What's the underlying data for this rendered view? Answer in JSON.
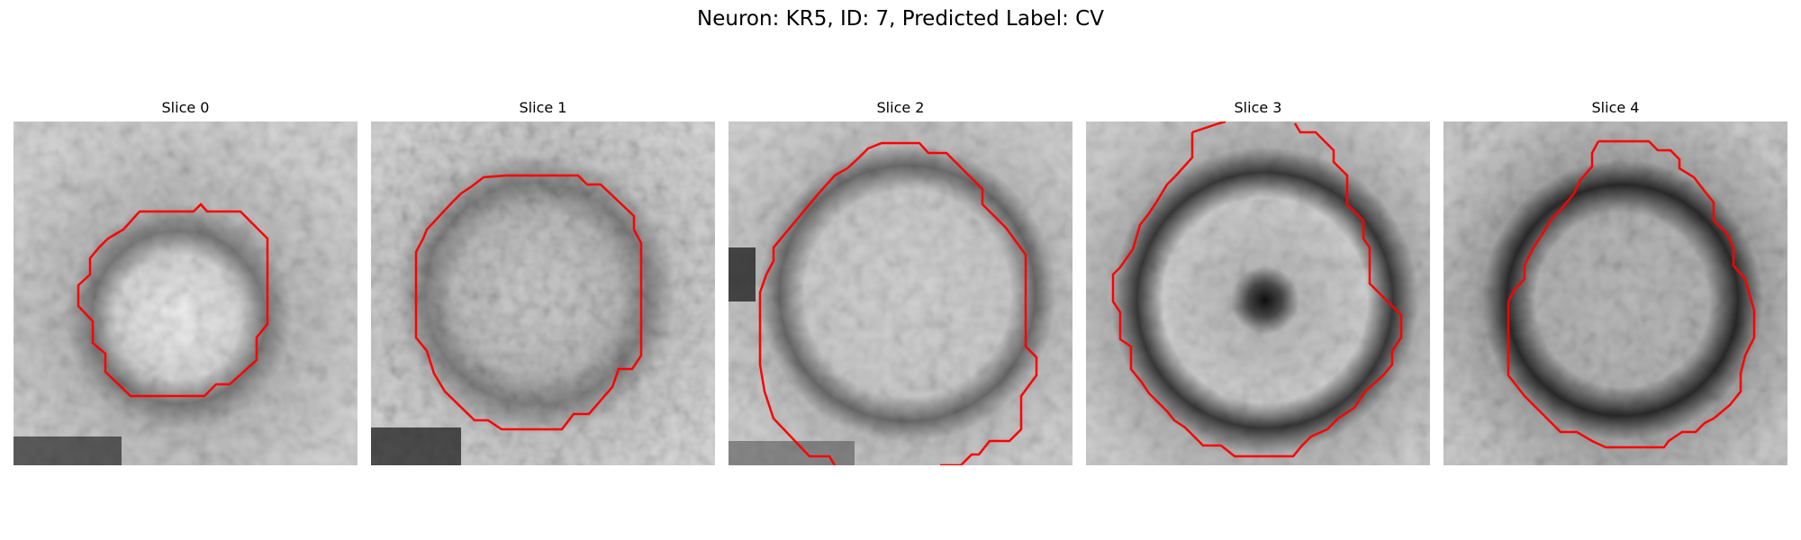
{
  "figure": {
    "title": "Neuron: KR5, ID: 7, Predicted Label: CV",
    "panels": [
      {
        "title": "Slice 0",
        "image": "grayscale EM crop, bright textured blob inside a dark ring"
      },
      {
        "title": "Slice 1",
        "image": "grayscale EM crop, mottled gray vesicle with dark ring"
      },
      {
        "title": "Slice 2",
        "image": "grayscale EM crop, large light circular vesicle with dark border"
      },
      {
        "title": "Slice 3",
        "image": "grayscale EM crop, vesicle with dark spot at center and thick dark ring"
      },
      {
        "title": "Slice 4",
        "image": "grayscale EM crop, vesicle with thick dark ring"
      }
    ],
    "contour_color": "#ff0000"
  }
}
